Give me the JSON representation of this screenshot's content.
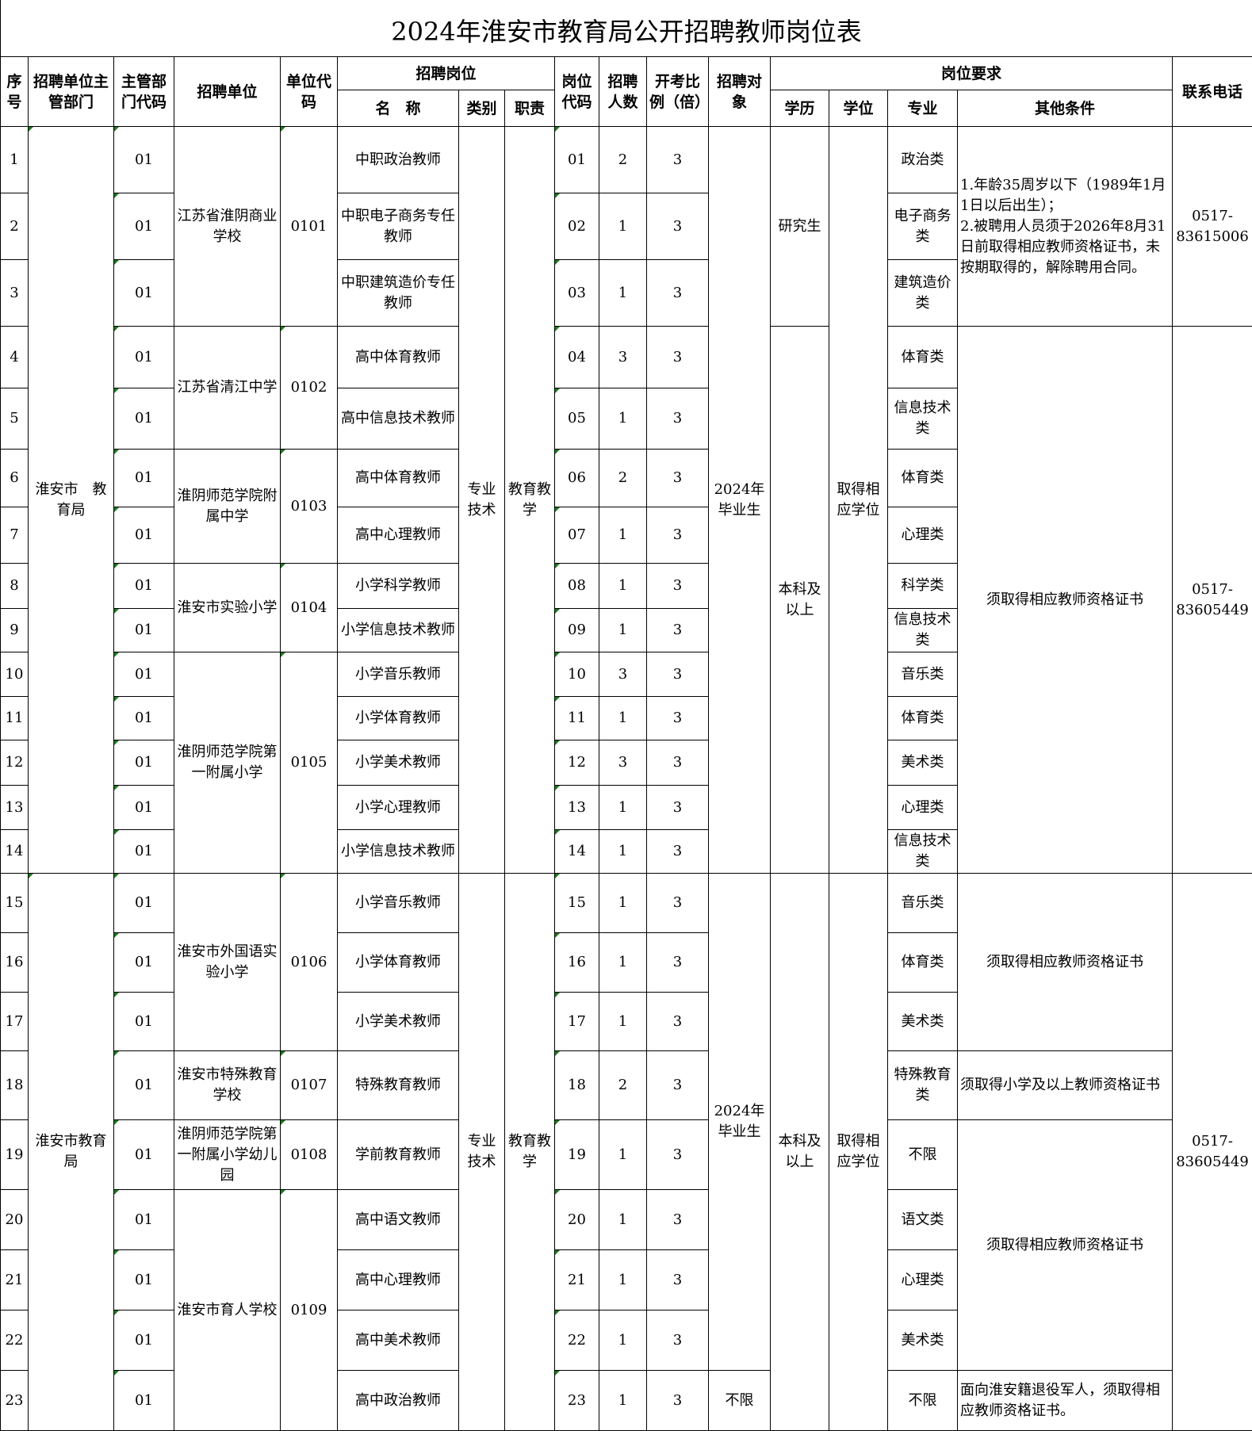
{
  "title": "2024年淮安市教育局公开招聘教师岗位表",
  "headers": {
    "seq": "序号",
    "dept": "招聘单位主管部门",
    "dept_code": "主管部门代码",
    "unit": "招聘单位",
    "unit_code": "单位代码",
    "post": "招聘岗位",
    "post_name": "名　称",
    "post_type": "类别",
    "post_duty": "职责",
    "post_code": "岗位代码",
    "count": "招聘人数",
    "ratio": "开考比例（倍）",
    "target": "招聘对象",
    "req": "岗位要求",
    "edu": "学历",
    "degree": "学位",
    "major": "专业",
    "other": "其他条件",
    "phone": "联系电话"
  },
  "rows": [
    {
      "seq": "1",
      "dept_code": "01",
      "name": "中职政治教师",
      "post_code": "01",
      "count": "2",
      "ratio": "3",
      "major": "政治类"
    },
    {
      "seq": "2",
      "dept_code": "01",
      "name": "中职电子商务专任教师",
      "post_code": "02",
      "count": "1",
      "ratio": "3",
      "major": "电子商务类"
    },
    {
      "seq": "3",
      "dept_code": "01",
      "name": "中职建筑造价专任教师",
      "post_code": "03",
      "count": "1",
      "ratio": "3",
      "major": "建筑造价类"
    },
    {
      "seq": "4",
      "dept_code": "01",
      "name": "高中体育教师",
      "post_code": "04",
      "count": "3",
      "ratio": "3",
      "major": "体育类"
    },
    {
      "seq": "5",
      "dept_code": "01",
      "name": "高中信息技术教师",
      "post_code": "05",
      "count": "1",
      "ratio": "3",
      "major": "信息技术类"
    },
    {
      "seq": "6",
      "dept_code": "01",
      "name": "高中体育教师",
      "post_code": "06",
      "count": "2",
      "ratio": "3",
      "major": "体育类"
    },
    {
      "seq": "7",
      "dept_code": "01",
      "name": "高中心理教师",
      "post_code": "07",
      "count": "1",
      "ratio": "3",
      "major": "心理类"
    },
    {
      "seq": "8",
      "dept_code": "01",
      "name": "小学科学教师",
      "post_code": "08",
      "count": "1",
      "ratio": "3",
      "major": "科学类"
    },
    {
      "seq": "9",
      "dept_code": "01",
      "name": "小学信息技术教师",
      "post_code": "09",
      "count": "1",
      "ratio": "3",
      "major": "信息技术类"
    },
    {
      "seq": "10",
      "dept_code": "01",
      "name": "小学音乐教师",
      "post_code": "10",
      "count": "3",
      "ratio": "3",
      "major": "音乐类"
    },
    {
      "seq": "11",
      "dept_code": "01",
      "name": "小学体育教师",
      "post_code": "11",
      "count": "1",
      "ratio": "3",
      "major": "体育类"
    },
    {
      "seq": "12",
      "dept_code": "01",
      "name": "小学美术教师",
      "post_code": "12",
      "count": "3",
      "ratio": "3",
      "major": "美术类"
    },
    {
      "seq": "13",
      "dept_code": "01",
      "name": "小学心理教师",
      "post_code": "13",
      "count": "1",
      "ratio": "3",
      "major": "心理类"
    },
    {
      "seq": "14",
      "dept_code": "01",
      "name": "小学信息技术教师",
      "post_code": "14",
      "count": "1",
      "ratio": "3",
      "major": "信息技术类"
    },
    {
      "seq": "15",
      "dept_code": "01",
      "name": "小学音乐教师",
      "post_code": "15",
      "count": "1",
      "ratio": "3",
      "major": "音乐类"
    },
    {
      "seq": "16",
      "dept_code": "01",
      "name": "小学体育教师",
      "post_code": "16",
      "count": "1",
      "ratio": "3",
      "major": "体育类"
    },
    {
      "seq": "17",
      "dept_code": "01",
      "name": "小学美术教师",
      "post_code": "17",
      "count": "1",
      "ratio": "3",
      "major": "美术类"
    },
    {
      "seq": "18",
      "dept_code": "01",
      "name": "特殊教育教师",
      "post_code": "18",
      "count": "2",
      "ratio": "3",
      "major": "特殊教育类"
    },
    {
      "seq": "19",
      "dept_code": "01",
      "name": "学前教育教师",
      "post_code": "19",
      "count": "1",
      "ratio": "3",
      "major": "不限"
    },
    {
      "seq": "20",
      "dept_code": "01",
      "name": "高中语文教师",
      "post_code": "20",
      "count": "1",
      "ratio": "3",
      "major": "语文类"
    },
    {
      "seq": "21",
      "dept_code": "01",
      "name": "高中心理教师",
      "post_code": "21",
      "count": "1",
      "ratio": "3",
      "major": "心理类"
    },
    {
      "seq": "22",
      "dept_code": "01",
      "name": "高中美术教师",
      "post_code": "22",
      "count": "1",
      "ratio": "3",
      "major": "美术类"
    },
    {
      "seq": "23",
      "dept_code": "01",
      "name": "高中政治教师",
      "post_code": "23",
      "count": "1",
      "ratio": "3",
      "major": "不限"
    }
  ],
  "groups": {
    "dept": [
      {
        "from": 1,
        "to": 14,
        "text": "淮安市　教育局"
      },
      {
        "from": 15,
        "to": 23,
        "text": "淮安市教育局"
      }
    ],
    "unit": [
      {
        "from": 1,
        "to": 3,
        "text": "江苏省淮阴商业学校",
        "code": "0101"
      },
      {
        "from": 4,
        "to": 5,
        "text": "江苏省清江中学",
        "code": "0102"
      },
      {
        "from": 6,
        "to": 7,
        "text": "淮阴师范学院附属中学",
        "code": "0103"
      },
      {
        "from": 8,
        "to": 9,
        "text": "淮安市实验小学",
        "code": "0104"
      },
      {
        "from": 10,
        "to": 14,
        "text": "淮阴师范学院第一附属小学",
        "code": "0105"
      },
      {
        "from": 15,
        "to": 17,
        "text": "淮安市外国语实验小学",
        "code": "0106"
      },
      {
        "from": 18,
        "to": 18,
        "text": "淮安市特殊教育学校",
        "code": "0107"
      },
      {
        "from": 19,
        "to": 19,
        "text": "淮阴师范学院第一附属小学幼儿园",
        "code": "0108"
      },
      {
        "from": 20,
        "to": 23,
        "text": "淮安市育人学校",
        "code": "0109"
      }
    ],
    "type": [
      {
        "from": 1,
        "to": 14,
        "text": "专业技术"
      },
      {
        "from": 15,
        "to": 23,
        "text": "专业技术"
      }
    ],
    "duty": [
      {
        "from": 1,
        "to": 14,
        "text": "教育教学"
      },
      {
        "from": 15,
        "to": 23,
        "text": "教育教学"
      }
    ],
    "target": [
      {
        "from": 1,
        "to": 14,
        "text": "2024年毕业生"
      },
      {
        "from": 15,
        "to": 22,
        "text": "2024年毕业生"
      },
      {
        "from": 23,
        "to": 23,
        "text": "不限"
      }
    ],
    "edu": [
      {
        "from": 1,
        "to": 3,
        "text": "研究生"
      },
      {
        "from": 4,
        "to": 14,
        "text": "本科及以上"
      },
      {
        "from": 15,
        "to": 23,
        "text": "本科及以上"
      }
    ],
    "degree": [
      {
        "from": 1,
        "to": 14,
        "text": "取得相应学位"
      },
      {
        "from": 15,
        "to": 23,
        "text": "取得相应学位"
      }
    ],
    "other": [
      {
        "from": 1,
        "to": 3,
        "text": "1.年龄35周岁以下（1989年1月1日以后出生）；\n2.被聘用人员须于2026年8月31日前取得相应教师资格证书，未按期取得的，解除聘用合同。"
      },
      {
        "from": 4,
        "to": 14,
        "text": "须取得相应教师资格证书"
      },
      {
        "from": 15,
        "to": 17,
        "text": "须取得相应教师资格证书"
      },
      {
        "from": 18,
        "to": 18,
        "text": "须取得小学及以上教师资格证书"
      },
      {
        "from": 19,
        "to": 22,
        "text": "须取得相应教师资格证书"
      },
      {
        "from": 23,
        "to": 23,
        "text": "面向淮安籍退役军人，须取得相应教师资格证书。"
      }
    ],
    "phone": [
      {
        "from": 1,
        "to": 3,
        "text": "0517-83615006"
      },
      {
        "from": 4,
        "to": 14,
        "text": "0517-83605449"
      },
      {
        "from": 15,
        "to": 23,
        "text": "0517-83605449"
      }
    ]
  }
}
